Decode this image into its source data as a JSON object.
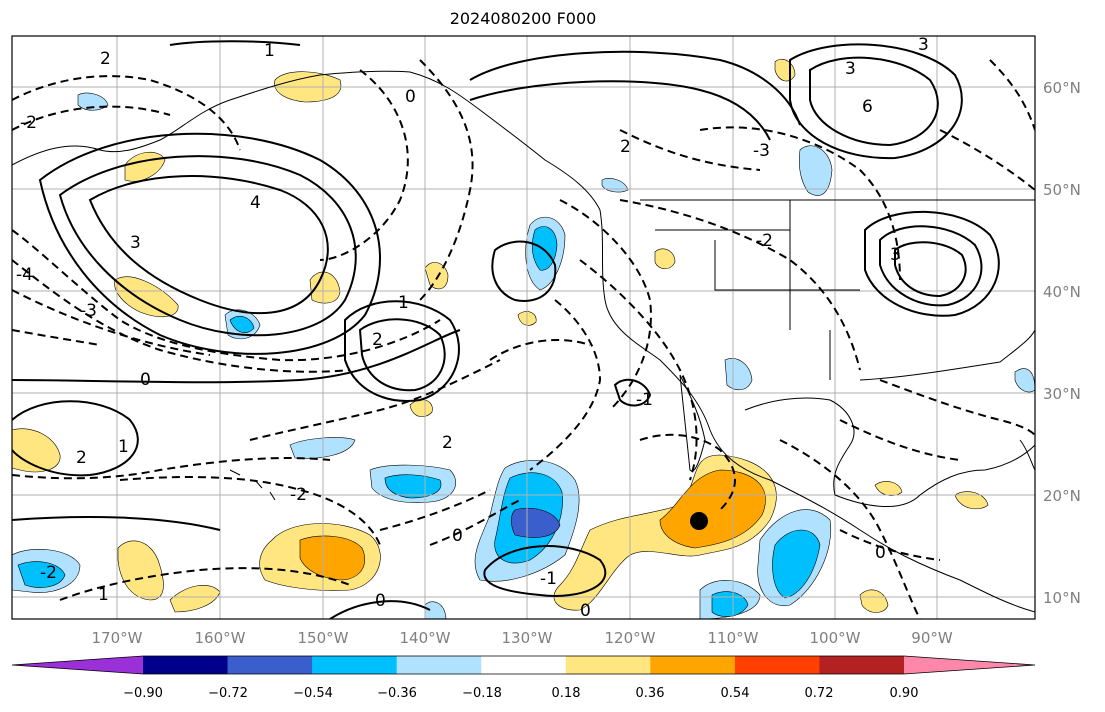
{
  "title": "2024080200 F000",
  "map": {
    "lon_labels": [
      "170°W",
      "160°W",
      "150°W",
      "140°W",
      "130°W",
      "120°W",
      "110°W",
      "100°W",
      "90°W"
    ],
    "lat_labels": [
      "60°N",
      "50°N",
      "40°N",
      "30°N",
      "20°N",
      "10°N"
    ],
    "contour_labels": [
      "2",
      "1",
      "0",
      "-1",
      "-2",
      "-3",
      "-4",
      "3",
      "4",
      "2",
      "1",
      "0",
      "6",
      "3",
      "2",
      "3",
      "-3",
      "2",
      "1",
      "0",
      "-1",
      "-2",
      "0",
      "0",
      "-2",
      "1",
      "0",
      "2",
      "-2",
      "3"
    ],
    "marker": "black dot"
  },
  "colorbar": {
    "tick_labels": [
      "−0.90",
      "−0.72",
      "−0.54",
      "−0.36",
      "−0.18",
      "0.18",
      "0.36",
      "0.54",
      "0.72",
      "0.90"
    ],
    "colors": [
      "#9b30d9",
      "#00008b",
      "#3a5fcd",
      "#00bfff",
      "#b0e2ff",
      "#ffffff",
      "#ffe680",
      "#ffa500",
      "#ff4000",
      "#b22222",
      "#ff88aa"
    ]
  },
  "colors": {
    "shade_light_blue": "#b0e2ff",
    "shade_blue": "#00bfff",
    "shade_dark_blue": "#3a5fcd",
    "shade_yellow": "#ffe680",
    "shade_orange": "#ffa500"
  }
}
